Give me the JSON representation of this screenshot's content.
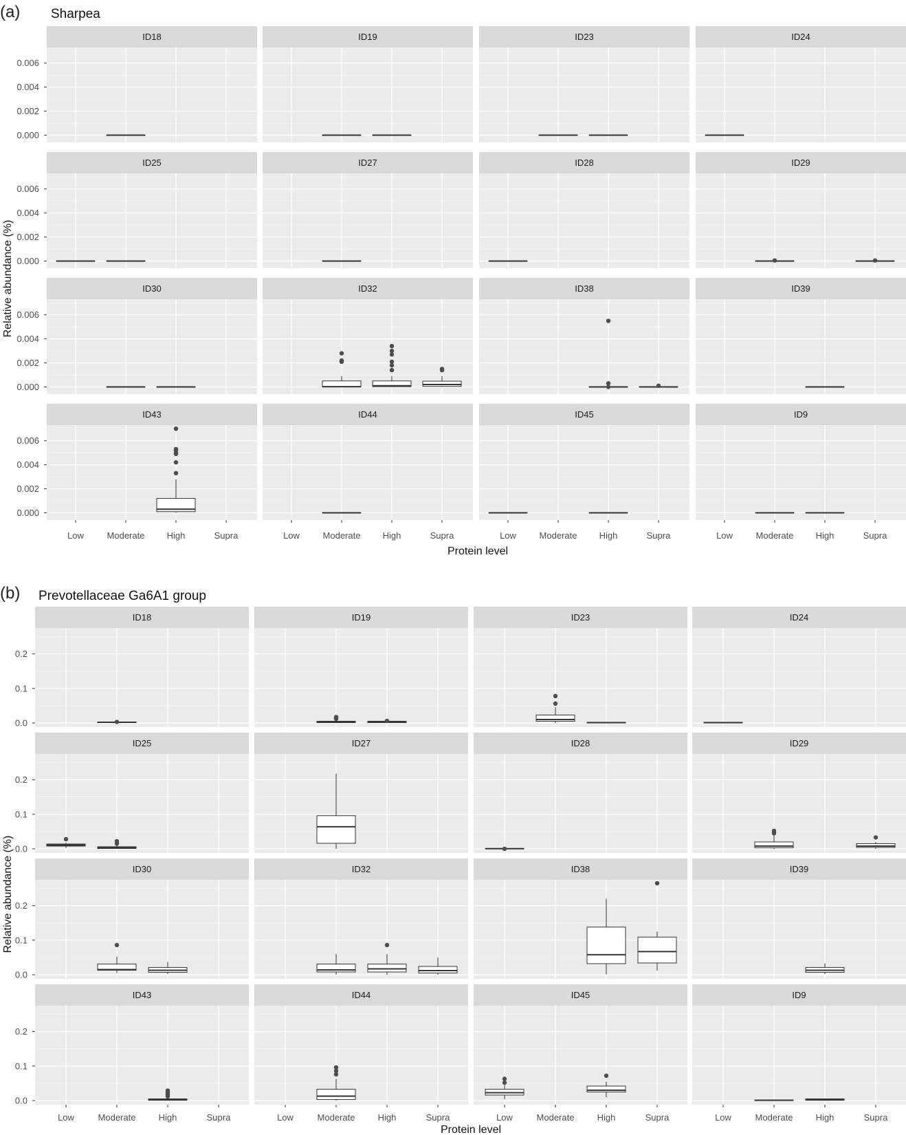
{
  "figure": {
    "type": "faceted_boxplot"
  },
  "chart_data": [
    {
      "type": "box",
      "panel_label": "(a)",
      "title": "Sharpea",
      "xlabel": "Protein level",
      "ylabel": "Relative abundance (%)",
      "categories": [
        "Low",
        "Moderate",
        "High",
        "Supra"
      ],
      "ylim": [
        -0.0006,
        0.0073
      ],
      "yticks": [
        0.0,
        0.002,
        0.004,
        0.006
      ],
      "ytick_labels": [
        "0.000",
        "0.002",
        "0.004",
        "0.006"
      ],
      "grid": true,
      "facets": [
        {
          "id": "ID18",
          "boxes": [
            {
              "category": "Moderate",
              "q1": 0,
              "median": 0,
              "q3": 0,
              "lo": 0,
              "hi": 0,
              "outliers": []
            }
          ]
        },
        {
          "id": "ID19",
          "boxes": [
            {
              "category": "Moderate",
              "q1": 0,
              "median": 0,
              "q3": 0,
              "lo": 0,
              "hi": 0,
              "outliers": []
            },
            {
              "category": "High",
              "q1": 0,
              "median": 0,
              "q3": 0,
              "lo": 0,
              "hi": 0,
              "outliers": []
            }
          ]
        },
        {
          "id": "ID23",
          "boxes": [
            {
              "category": "Moderate",
              "q1": 0,
              "median": 0,
              "q3": 0,
              "lo": 0,
              "hi": 0,
              "outliers": []
            },
            {
              "category": "High",
              "q1": 0,
              "median": 0,
              "q3": 0,
              "lo": 0,
              "hi": 0,
              "outliers": []
            }
          ]
        },
        {
          "id": "ID24",
          "boxes": [
            {
              "category": "Low",
              "q1": 0,
              "median": 0,
              "q3": 0,
              "lo": 0,
              "hi": 0,
              "outliers": []
            }
          ]
        },
        {
          "id": "ID25",
          "boxes": [
            {
              "category": "Low",
              "q1": 0,
              "median": 0,
              "q3": 0,
              "lo": 0,
              "hi": 0,
              "outliers": []
            },
            {
              "category": "Moderate",
              "q1": 0,
              "median": 0,
              "q3": 0,
              "lo": 0,
              "hi": 0,
              "outliers": []
            }
          ]
        },
        {
          "id": "ID27",
          "boxes": [
            {
              "category": "Moderate",
              "q1": 0,
              "median": 0,
              "q3": 0,
              "lo": 0,
              "hi": 0,
              "outliers": []
            }
          ]
        },
        {
          "id": "ID28",
          "boxes": [
            {
              "category": "Low",
              "q1": 0,
              "median": 0,
              "q3": 0,
              "lo": 0,
              "hi": 0,
              "outliers": []
            }
          ]
        },
        {
          "id": "ID29",
          "boxes": [
            {
              "category": "Moderate",
              "q1": 0,
              "median": 0,
              "q3": 0,
              "lo": 0,
              "hi": 0,
              "outliers": [
                5e-05
              ]
            },
            {
              "category": "Supra",
              "q1": 0,
              "median": 0,
              "q3": 0,
              "lo": 0,
              "hi": 0,
              "outliers": [
                5e-05
              ]
            }
          ]
        },
        {
          "id": "ID30",
          "boxes": [
            {
              "category": "Moderate",
              "q1": 0,
              "median": 0,
              "q3": 0,
              "lo": 0,
              "hi": 0,
              "outliers": []
            },
            {
              "category": "High",
              "q1": 0,
              "median": 0,
              "q3": 0,
              "lo": 0,
              "hi": 0,
              "outliers": []
            }
          ]
        },
        {
          "id": "ID32",
          "boxes": [
            {
              "category": "Moderate",
              "q1": 0,
              "median": 2e-05,
              "q3": 0.0005,
              "lo": 0,
              "hi": 0.0009,
              "outliers": [
                0.0021,
                0.0022,
                0.0028
              ]
            },
            {
              "category": "High",
              "q1": 3e-05,
              "median": 0.0001,
              "q3": 0.0005,
              "lo": 0,
              "hi": 0.0009,
              "outliers": [
                0.0014,
                0.0018,
                0.0021,
                0.0027,
                0.003,
                0.0034
              ]
            },
            {
              "category": "Supra",
              "q1": 5e-05,
              "median": 0.0002,
              "q3": 0.00048,
              "lo": 0,
              "hi": 0.0009,
              "outliers": [
                0.0014,
                0.0015
              ]
            }
          ]
        },
        {
          "id": "ID38",
          "boxes": [
            {
              "category": "High",
              "q1": 0,
              "median": 0,
              "q3": 3e-05,
              "lo": 0,
              "hi": 5e-05,
              "outliers": [
                0.0,
                0.0003,
                0.0055
              ]
            },
            {
              "category": "Supra",
              "q1": 0,
              "median": 0,
              "q3": 3e-05,
              "lo": 0,
              "hi": 5e-05,
              "outliers": [
                0.0001
              ]
            }
          ]
        },
        {
          "id": "ID39",
          "boxes": [
            {
              "category": "High",
              "q1": 0,
              "median": 0,
              "q3": 0,
              "lo": 0,
              "hi": 0,
              "outliers": []
            }
          ]
        },
        {
          "id": "ID43",
          "boxes": [
            {
              "category": "High",
              "q1": 0.0001,
              "median": 0.0003,
              "q3": 0.0012,
              "lo": 0,
              "hi": 0.0028,
              "outliers": [
                0.0033,
                0.0042,
                0.0049,
                0.005,
                0.0052,
                0.0053,
                0.007
              ]
            }
          ]
        },
        {
          "id": "ID44",
          "boxes": [
            {
              "category": "Moderate",
              "q1": 0,
              "median": 0,
              "q3": 0,
              "lo": 0,
              "hi": 0,
              "outliers": []
            }
          ]
        },
        {
          "id": "ID45",
          "boxes": [
            {
              "category": "Low",
              "q1": 0,
              "median": 0,
              "q3": 0,
              "lo": 0,
              "hi": 0,
              "outliers": []
            },
            {
              "category": "High",
              "q1": 0,
              "median": 0,
              "q3": 0,
              "lo": 0,
              "hi": 0,
              "outliers": []
            }
          ]
        },
        {
          "id": "ID9",
          "boxes": [
            {
              "category": "Moderate",
              "q1": 0,
              "median": 0,
              "q3": 0,
              "lo": 0,
              "hi": 0,
              "outliers": []
            },
            {
              "category": "High",
              "q1": 0,
              "median": 0,
              "q3": 0,
              "lo": 0,
              "hi": 0,
              "outliers": []
            }
          ]
        }
      ]
    },
    {
      "type": "box",
      "panel_label": "(b)",
      "title": "Prevotellaceae Ga6A1 group",
      "xlabel": "Protein level",
      "ylabel": "Relative abundance (%)",
      "categories": [
        "Low",
        "Moderate",
        "High",
        "Supra"
      ],
      "ylim": [
        -0.012,
        0.275
      ],
      "yticks": [
        0.0,
        0.1,
        0.2
      ],
      "ytick_labels": [
        "0.0",
        "0.1",
        "0.2"
      ],
      "grid": true,
      "facets": [
        {
          "id": "ID18",
          "boxes": [
            {
              "category": "Moderate",
              "q1": 0.001,
              "median": 0.002,
              "q3": 0.003,
              "lo": 0,
              "hi": 0.004,
              "outliers": [
                0.003
              ]
            }
          ]
        },
        {
          "id": "ID19",
          "boxes": [
            {
              "category": "Moderate",
              "q1": 0.001,
              "median": 0.003,
              "q3": 0.005,
              "lo": 0,
              "hi": 0.008,
              "outliers": [
                0.012,
                0.015,
                0.017
              ]
            },
            {
              "category": "High",
              "q1": 0.001,
              "median": 0.003,
              "q3": 0.005,
              "lo": 0,
              "hi": 0.006,
              "outliers": [
                0.006
              ]
            }
          ]
        },
        {
          "id": "ID23",
          "boxes": [
            {
              "category": "Moderate",
              "q1": 0.005,
              "median": 0.01,
              "q3": 0.023,
              "lo": 0,
              "hi": 0.045,
              "outliers": [
                0.056,
                0.078
              ]
            },
            {
              "category": "High",
              "q1": 0,
              "median": 0.001,
              "q3": 0.002,
              "lo": 0,
              "hi": 0.002,
              "outliers": []
            }
          ]
        },
        {
          "id": "ID24",
          "boxes": [
            {
              "category": "Low",
              "q1": 0,
              "median": 0.001,
              "q3": 0.002,
              "lo": 0,
              "hi": 0.002,
              "outliers": []
            }
          ]
        },
        {
          "id": "ID25",
          "boxes": [
            {
              "category": "Low",
              "q1": 0.008,
              "median": 0.011,
              "q3": 0.014,
              "lo": 0.003,
              "hi": 0.018,
              "outliers": [
                0.028
              ]
            },
            {
              "category": "Moderate",
              "q1": 0.001,
              "median": 0.003,
              "q3": 0.006,
              "lo": 0,
              "hi": 0.01,
              "outliers": [
                0.015,
                0.022
              ]
            }
          ]
        },
        {
          "id": "ID27",
          "boxes": [
            {
              "category": "Moderate",
              "q1": 0.016,
              "median": 0.064,
              "q3": 0.096,
              "lo": 0,
              "hi": 0.218,
              "outliers": []
            }
          ]
        },
        {
          "id": "ID28",
          "boxes": [
            {
              "category": "Low",
              "q1": 0,
              "median": 0.0005,
              "q3": 0.001,
              "lo": 0,
              "hi": 0.001,
              "outliers": [
                0.0
              ]
            }
          ]
        },
        {
          "id": "ID29",
          "boxes": [
            {
              "category": "Moderate",
              "q1": 0.003,
              "median": 0.008,
              "q3": 0.02,
              "lo": 0,
              "hi": 0.04,
              "outliers": [
                0.045,
                0.048,
                0.052
              ]
            },
            {
              "category": "Supra",
              "q1": 0.004,
              "median": 0.008,
              "q3": 0.015,
              "lo": 0,
              "hi": 0.02,
              "outliers": [
                0.033
              ]
            }
          ]
        },
        {
          "id": "ID30",
          "boxes": [
            {
              "category": "Moderate",
              "q1": 0.013,
              "median": 0.015,
              "q3": 0.031,
              "lo": 0.005,
              "hi": 0.052,
              "outliers": [
                0.086
              ]
            },
            {
              "category": "High",
              "q1": 0.007,
              "median": 0.013,
              "q3": 0.021,
              "lo": 0.002,
              "hi": 0.037,
              "outliers": []
            }
          ]
        },
        {
          "id": "ID32",
          "boxes": [
            {
              "category": "Moderate",
              "q1": 0.008,
              "median": 0.014,
              "q3": 0.031,
              "lo": 0,
              "hi": 0.06,
              "outliers": []
            },
            {
              "category": "High",
              "q1": 0.008,
              "median": 0.017,
              "q3": 0.031,
              "lo": 0,
              "hi": 0.06,
              "outliers": [
                0.086
              ]
            },
            {
              "category": "Supra",
              "q1": 0.005,
              "median": 0.012,
              "q3": 0.024,
              "lo": 0,
              "hi": 0.05,
              "outliers": []
            }
          ]
        },
        {
          "id": "ID38",
          "boxes": [
            {
              "category": "High",
              "q1": 0.032,
              "median": 0.058,
              "q3": 0.138,
              "lo": 0.001,
              "hi": 0.22,
              "outliers": []
            },
            {
              "category": "Supra",
              "q1": 0.034,
              "median": 0.067,
              "q3": 0.109,
              "lo": 0.012,
              "hi": 0.125,
              "outliers": [
                0.265
              ]
            }
          ]
        },
        {
          "id": "ID39",
          "boxes": [
            {
              "category": "High",
              "q1": 0.007,
              "median": 0.013,
              "q3": 0.021,
              "lo": 0.002,
              "hi": 0.033,
              "outliers": []
            }
          ]
        },
        {
          "id": "ID43",
          "boxes": [
            {
              "category": "High",
              "q1": 0.001,
              "median": 0.003,
              "q3": 0.005,
              "lo": 0,
              "hi": 0.008,
              "outliers": [
                0.012,
                0.017,
                0.021,
                0.025,
                0.029
              ]
            }
          ]
        },
        {
          "id": "ID44",
          "boxes": [
            {
              "category": "Moderate",
              "q1": 0.003,
              "median": 0.013,
              "q3": 0.033,
              "lo": 0,
              "hi": 0.063,
              "outliers": [
                0.076,
                0.086,
                0.096
              ]
            }
          ]
        },
        {
          "id": "ID45",
          "boxes": [
            {
              "category": "Low",
              "q1": 0.016,
              "median": 0.023,
              "q3": 0.033,
              "lo": 0.004,
              "hi": 0.045,
              "outliers": [
                0.052,
                0.063
              ]
            },
            {
              "category": "High",
              "q1": 0.025,
              "median": 0.03,
              "q3": 0.042,
              "lo": 0.01,
              "hi": 0.055,
              "outliers": [
                0.072
              ]
            }
          ]
        },
        {
          "id": "ID9",
          "boxes": [
            {
              "category": "Moderate",
              "q1": 0,
              "median": 0.001,
              "q3": 0.002,
              "lo": 0,
              "hi": 0.002,
              "outliers": []
            },
            {
              "category": "High",
              "q1": 0.001,
              "median": 0.003,
              "q3": 0.005,
              "lo": 0,
              "hi": 0.006,
              "outliers": []
            }
          ]
        }
      ]
    }
  ]
}
